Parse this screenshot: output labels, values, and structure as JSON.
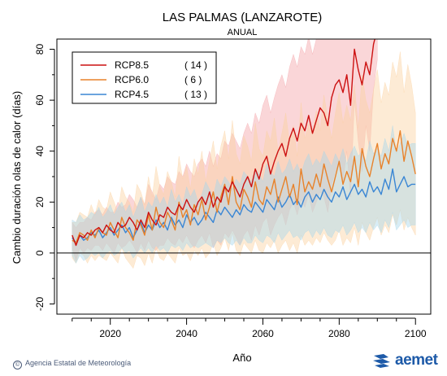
{
  "chart_data": {
    "type": "line",
    "title": "LAS PALMAS (LANZAROTE)",
    "subtitle": "ANUAL",
    "xlabel": "Año",
    "ylabel": "Cambio duración olas de calor (días)",
    "xlim": [
      2006,
      2104
    ],
    "ylim": [
      -24,
      84
    ],
    "xticks": [
      2020,
      2040,
      2060,
      2080,
      2100
    ],
    "yticks": [
      -20,
      0,
      20,
      40,
      60,
      80
    ],
    "reference_line": 0,
    "legend_position": "top-left",
    "series": [
      {
        "name": "RCP8.5",
        "count_label": "( 14 )",
        "color": "#cc1111",
        "band_color": "#f4a3a8",
        "x": [
          2010,
          2011,
          2012,
          2013,
          2014,
          2015,
          2016,
          2017,
          2018,
          2019,
          2020,
          2021,
          2022,
          2023,
          2024,
          2025,
          2026,
          2027,
          2028,
          2029,
          2030,
          2031,
          2032,
          2033,
          2034,
          2035,
          2036,
          2037,
          2038,
          2039,
          2040,
          2041,
          2042,
          2043,
          2044,
          2045,
          2046,
          2047,
          2048,
          2049,
          2050,
          2051,
          2052,
          2053,
          2054,
          2055,
          2056,
          2057,
          2058,
          2059,
          2060,
          2061,
          2062,
          2063,
          2064,
          2065,
          2066,
          2067,
          2068,
          2069,
          2070,
          2071,
          2072,
          2073,
          2074,
          2075,
          2076,
          2077,
          2078,
          2079,
          2080,
          2081,
          2082,
          2083,
          2084,
          2085,
          2086,
          2087,
          2088,
          2089,
          2090
        ],
        "y": [
          7,
          3,
          7,
          6,
          8,
          7,
          9,
          10,
          8,
          11,
          9,
          8,
          12,
          10,
          11,
          14,
          12,
          9,
          13,
          10,
          16,
          13,
          11,
          15,
          14,
          18,
          16,
          15,
          19,
          17,
          21,
          18,
          16,
          20,
          22,
          19,
          24,
          18,
          22,
          20,
          26,
          24,
          28,
          25,
          22,
          27,
          30,
          26,
          33,
          29,
          35,
          38,
          31,
          36,
          40,
          43,
          38,
          45,
          49,
          44,
          51,
          48,
          54,
          47,
          52,
          57,
          55,
          50,
          61,
          66,
          68,
          63,
          70,
          58,
          80,
          72,
          66,
          75,
          70,
          82,
          88
        ],
        "upper": [
          12,
          10,
          12,
          12,
          14,
          13,
          16,
          17,
          15,
          18,
          16,
          16,
          20,
          18,
          19,
          23,
          21,
          18,
          22,
          19,
          27,
          24,
          21,
          27,
          25,
          30,
          28,
          27,
          32,
          30,
          35,
          32,
          30,
          35,
          37,
          34,
          40,
          34,
          39,
          37,
          44,
          42,
          47,
          44,
          41,
          47,
          51,
          47,
          55,
          51,
          58,
          62,
          55,
          61,
          66,
          70,
          65,
          73,
          78,
          73,
          81,
          78,
          85,
          78,
          84,
          90,
          88,
          84,
          95,
          100,
          100,
          98,
          100,
          94,
          100,
          100,
          100,
          100,
          100,
          100,
          100
        ],
        "lower": [
          2,
          -3,
          2,
          0,
          2,
          1,
          3,
          3,
          1,
          4,
          2,
          0,
          4,
          2,
          3,
          5,
          3,
          0,
          4,
          1,
          5,
          2,
          1,
          3,
          3,
          6,
          4,
          3,
          6,
          4,
          7,
          4,
          2,
          5,
          7,
          4,
          8,
          2,
          5,
          3,
          8,
          6,
          9,
          6,
          3,
          7,
          9,
          5,
          11,
          7,
          12,
          14,
          7,
          11,
          14,
          16,
          11,
          17,
          20,
          15,
          21,
          18,
          23,
          16,
          20,
          24,
          22,
          16,
          27,
          32,
          36,
          28,
          40,
          22,
          60,
          44,
          32,
          50,
          40,
          64,
          76
        ]
      },
      {
        "name": "RCP6.0",
        "count_label": "(  6 )",
        "color": "#e8822a",
        "band_color": "#fbd2a2",
        "x": [
          2010,
          2011,
          2012,
          2013,
          2014,
          2015,
          2016,
          2017,
          2018,
          2019,
          2020,
          2021,
          2022,
          2023,
          2024,
          2025,
          2026,
          2027,
          2028,
          2029,
          2030,
          2031,
          2032,
          2033,
          2034,
          2035,
          2036,
          2037,
          2038,
          2039,
          2040,
          2041,
          2042,
          2043,
          2044,
          2045,
          2046,
          2047,
          2048,
          2049,
          2050,
          2051,
          2052,
          2053,
          2054,
          2055,
          2056,
          2057,
          2058,
          2059,
          2060,
          2061,
          2062,
          2063,
          2064,
          2065,
          2066,
          2067,
          2068,
          2069,
          2070,
          2071,
          2072,
          2073,
          2074,
          2075,
          2076,
          2077,
          2078,
          2079,
          2080,
          2081,
          2082,
          2083,
          2084,
          2085,
          2086,
          2087,
          2088,
          2089,
          2090,
          2091,
          2092,
          2093,
          2094,
          2095,
          2096,
          2097,
          2098,
          2099,
          2100
        ],
        "y": [
          5,
          4,
          8,
          7,
          5,
          9,
          6,
          10,
          8,
          7,
          12,
          9,
          6,
          14,
          10,
          8,
          5,
          13,
          11,
          7,
          15,
          9,
          18,
          12,
          10,
          16,
          13,
          9,
          20,
          14,
          17,
          11,
          19,
          15,
          21,
          13,
          18,
          24,
          16,
          22,
          27,
          19,
          30,
          20,
          17,
          25,
          22,
          18,
          28,
          21,
          19,
          26,
          23,
          29,
          20,
          25,
          30,
          22,
          27,
          19,
          33,
          24,
          28,
          25,
          31,
          26,
          35,
          29,
          24,
          30,
          36,
          27,
          32,
          28,
          38,
          26,
          41,
          34,
          30,
          37,
          43,
          33,
          39,
          35,
          45,
          40,
          48,
          36,
          44,
          38,
          31
        ],
        "upper": [
          12,
          12,
          16,
          15,
          14,
          19,
          15,
          21,
          18,
          17,
          24,
          20,
          16,
          26,
          22,
          20,
          16,
          27,
          24,
          19,
          30,
          22,
          34,
          26,
          23,
          32,
          28,
          22,
          38,
          29,
          34,
          25,
          37,
          31,
          40,
          28,
          36,
          44,
          33,
          42,
          48,
          37,
          52,
          39,
          35,
          46,
          42,
          36,
          51,
          41,
          38,
          48,
          44,
          53,
          40,
          47,
          55,
          43,
          50,
          38,
          59,
          45,
          51,
          47,
          56,
          48,
          62,
          53,
          45,
          55,
          63,
          51,
          58,
          52,
          66,
          49,
          70,
          60,
          55,
          64,
          72,
          59,
          67,
          62,
          75,
          69,
          79,
          63,
          74,
          66,
          55
        ],
        "lower": [
          -2,
          -4,
          0,
          -1,
          -4,
          -1,
          -3,
          -1,
          -2,
          -3,
          0,
          -2,
          -4,
          2,
          -2,
          -4,
          -6,
          -1,
          -2,
          -5,
          0,
          -4,
          2,
          -2,
          -3,
          0,
          -2,
          -4,
          2,
          -1,
          0,
          -3,
          1,
          -1,
          2,
          -2,
          0,
          4,
          -1,
          2,
          6,
          1,
          8,
          1,
          -1,
          4,
          2,
          0,
          5,
          1,
          0,
          4,
          2,
          5,
          0,
          3,
          5,
          1,
          4,
          0,
          7,
          3,
          5,
          3,
          6,
          4,
          8,
          5,
          3,
          5,
          9,
          3,
          6,
          4,
          10,
          3,
          12,
          8,
          5,
          10,
          14,
          7,
          11,
          8,
          15,
          11,
          17,
          9,
          14,
          10,
          7
        ]
      },
      {
        "name": "RCP4.5",
        "count_label": "( 13 )",
        "color": "#3a86d4",
        "band_color": "#a9d6ea",
        "x": [
          2010,
          2011,
          2012,
          2013,
          2014,
          2015,
          2016,
          2017,
          2018,
          2019,
          2020,
          2021,
          2022,
          2023,
          2024,
          2025,
          2026,
          2027,
          2028,
          2029,
          2030,
          2031,
          2032,
          2033,
          2034,
          2035,
          2036,
          2037,
          2038,
          2039,
          2040,
          2041,
          2042,
          2043,
          2044,
          2045,
          2046,
          2047,
          2048,
          2049,
          2050,
          2051,
          2052,
          2053,
          2054,
          2055,
          2056,
          2057,
          2058,
          2059,
          2060,
          2061,
          2062,
          2063,
          2064,
          2065,
          2066,
          2067,
          2068,
          2069,
          2070,
          2071,
          2072,
          2073,
          2074,
          2075,
          2076,
          2077,
          2078,
          2079,
          2080,
          2081,
          2082,
          2083,
          2084,
          2085,
          2086,
          2087,
          2088,
          2089,
          2090,
          2091,
          2092,
          2093,
          2094,
          2095,
          2096,
          2097,
          2098,
          2099,
          2100
        ],
        "y": [
          6,
          4,
          7,
          5,
          6,
          8,
          7,
          9,
          6,
          8,
          10,
          7,
          9,
          11,
          8,
          10,
          6,
          9,
          12,
          8,
          11,
          9,
          13,
          10,
          12,
          9,
          14,
          11,
          13,
          10,
          15,
          12,
          14,
          11,
          13,
          16,
          14,
          12,
          17,
          15,
          18,
          16,
          14,
          17,
          15,
          19,
          17,
          16,
          20,
          18,
          16,
          21,
          19,
          17,
          22,
          18,
          20,
          23,
          19,
          21,
          18,
          22,
          24,
          20,
          23,
          21,
          25,
          22,
          20,
          24,
          22,
          26,
          21,
          24,
          27,
          23,
          25,
          22,
          28,
          24,
          26,
          23,
          29,
          25,
          33,
          24,
          27,
          30,
          26,
          27,
          27
        ],
        "upper": [
          13,
          12,
          15,
          13,
          14,
          16,
          15,
          18,
          14,
          16,
          19,
          15,
          18,
          20,
          16,
          19,
          14,
          18,
          22,
          16,
          20,
          18,
          23,
          19,
          22,
          18,
          25,
          20,
          23,
          19,
          26,
          22,
          25,
          20,
          23,
          28,
          25,
          22,
          29,
          26,
          30,
          28,
          25,
          29,
          27,
          32,
          30,
          28,
          33,
          31,
          28,
          35,
          32,
          30,
          36,
          31,
          33,
          37,
          32,
          35,
          31,
          36,
          39,
          34,
          37,
          35,
          40,
          37,
          34,
          39,
          36,
          41,
          35,
          39,
          42,
          38,
          40,
          36,
          44,
          39,
          41,
          38,
          45,
          40,
          50,
          39,
          43,
          47,
          42,
          43,
          43
        ],
        "lower": [
          -1,
          -4,
          -1,
          -3,
          -2,
          0,
          -1,
          0,
          -2,
          0,
          1,
          -1,
          0,
          2,
          0,
          1,
          -2,
          0,
          2,
          0,
          2,
          0,
          3,
          1,
          2,
          0,
          3,
          2,
          3,
          1,
          4,
          2,
          3,
          2,
          3,
          4,
          3,
          2,
          5,
          4,
          6,
          4,
          3,
          5,
          3,
          6,
          4,
          4,
          7,
          5,
          4,
          7,
          6,
          4,
          8,
          5,
          7,
          9,
          6,
          7,
          5,
          8,
          9,
          6,
          9,
          7,
          10,
          7,
          6,
          9,
          8,
          11,
          7,
          9,
          12,
          8,
          10,
          8,
          12,
          9,
          11,
          8,
          13,
          10,
          16,
          9,
          11,
          13,
          10,
          11,
          11
        ]
      }
    ]
  },
  "footer": {
    "credit": "Agencia Estatal de Meteorología",
    "logo_text": "aemet"
  }
}
